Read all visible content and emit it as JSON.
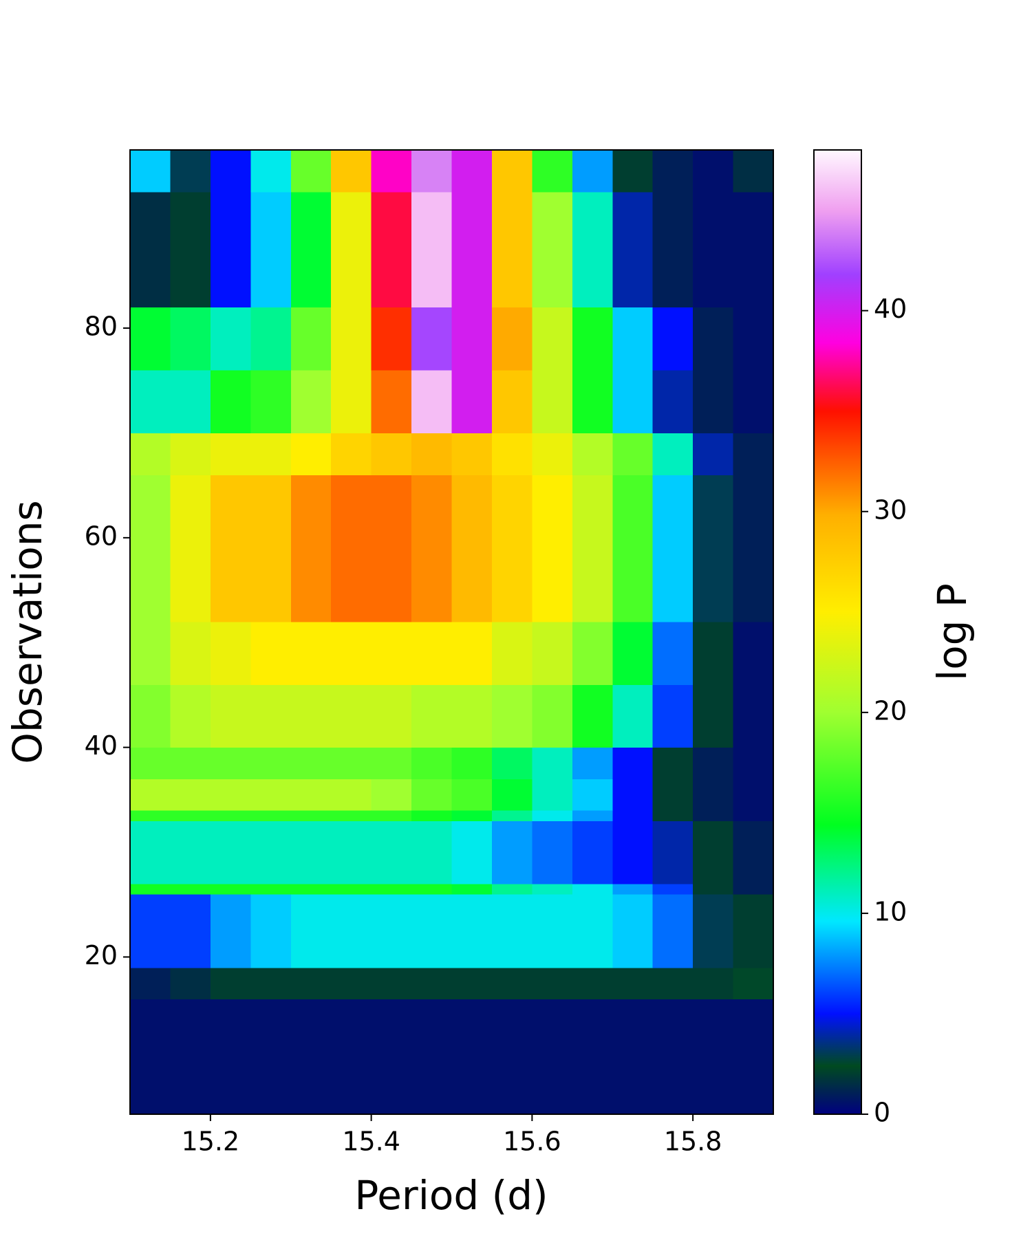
{
  "chart_data": {
    "type": "heatmap",
    "xlabel": "Period (d)",
    "ylabel": "Observations",
    "colorbar_label": "log P",
    "xlim": [
      15.1,
      15.9
    ],
    "ylim": [
      5,
      97
    ],
    "xticks": [
      15.2,
      15.4,
      15.6,
      15.8
    ],
    "yticks": [
      20,
      40,
      60,
      80
    ],
    "clim": [
      0,
      48
    ],
    "cticks": [
      0,
      10,
      20,
      30,
      40
    ],
    "colormap": [
      {
        "value": 0,
        "color": "#000080"
      },
      {
        "value": 2.4,
        "color": "#004a20"
      },
      {
        "value": 5,
        "color": "#0010ff"
      },
      {
        "value": 9.6,
        "color": "#00e8ff"
      },
      {
        "value": 14.4,
        "color": "#00ff20"
      },
      {
        "value": 20,
        "color": "#a0ff30"
      },
      {
        "value": 25,
        "color": "#ffee00"
      },
      {
        "value": 29.8,
        "color": "#ffb000"
      },
      {
        "value": 35,
        "color": "#ff1000"
      },
      {
        "value": 38.4,
        "color": "#ff00e0"
      },
      {
        "value": 41.8,
        "color": "#a040ff"
      },
      {
        "value": 45,
        "color": "#f0a0f0"
      },
      {
        "value": 48,
        "color": "#fff8ff"
      }
    ],
    "xbins": [
      15.1,
      15.15,
      15.2,
      15.25,
      15.3,
      15.35,
      15.4,
      15.45,
      15.5,
      15.55,
      15.6,
      15.65,
      15.7,
      15.75,
      15.8,
      15.85,
      15.9
    ],
    "ybins": [
      5,
      16,
      19,
      26,
      27,
      33,
      34,
      37,
      40,
      46,
      52,
      66,
      70,
      76,
      82,
      93,
      97
    ],
    "values": [
      [
        0.5,
        0.5,
        0.5,
        0.5,
        0.5,
        0.5,
        0.5,
        0.5,
        0.5,
        0.5,
        0.5,
        0.5,
        0.5,
        0.5,
        0.5,
        0.5
      ],
      [
        1,
        1.5,
        2,
        2,
        2,
        2,
        2,
        2,
        2,
        2,
        2,
        2,
        2,
        2,
        2,
        2.5
      ],
      [
        6,
        6,
        8,
        9,
        10,
        10,
        10,
        10,
        10,
        10,
        10,
        10,
        9,
        7,
        3,
        2
      ],
      [
        15,
        15,
        15,
        15,
        15,
        15,
        15,
        15,
        14,
        12,
        11,
        10,
        8,
        6,
        2,
        1
      ],
      [
        11,
        11,
        11,
        11,
        11,
        11,
        11,
        11,
        10,
        8,
        7,
        6,
        5,
        4,
        2,
        1
      ],
      [
        16,
        16,
        16,
        16,
        16,
        16,
        16,
        15,
        14,
        12,
        10,
        8,
        5,
        2,
        1,
        0.5
      ],
      [
        21,
        21,
        21,
        21,
        21,
        21,
        20,
        18,
        17,
        14,
        11,
        9,
        5,
        2,
        1,
        0.5
      ],
      [
        18,
        18,
        18,
        18,
        18,
        18,
        18,
        17,
        16,
        13,
        11,
        8,
        5,
        2,
        1,
        0.5
      ],
      [
        19,
        21,
        22,
        22,
        22,
        22,
        22,
        21,
        21,
        20,
        19,
        15,
        11,
        6,
        2,
        0.5
      ],
      [
        20,
        23,
        24,
        25,
        25,
        25,
        25,
        25,
        25,
        23,
        22,
        19,
        14,
        7,
        2,
        0.5
      ],
      [
        20,
        24,
        28,
        28,
        31,
        32,
        32,
        31,
        29,
        27,
        25,
        22,
        17,
        9,
        3,
        1
      ],
      [
        21,
        23,
        24,
        24,
        25,
        27,
        28,
        29,
        28,
        26,
        24,
        21,
        18,
        11,
        4,
        1
      ],
      [
        11,
        11,
        15,
        16,
        20,
        24,
        32,
        46,
        40,
        28,
        22,
        15,
        9,
        4,
        1,
        0.5
      ],
      [
        14,
        13,
        11,
        12,
        18,
        24,
        34,
        42,
        40,
        30,
        22,
        15,
        9,
        5,
        1,
        0.5
      ],
      [
        1.5,
        2,
        5,
        9,
        14,
        24,
        36,
        46,
        40,
        28,
        20,
        11,
        4,
        1,
        0.5,
        0.5
      ],
      [
        9,
        3,
        5,
        10,
        18,
        28,
        38,
        44,
        40,
        28,
        16,
        8,
        2,
        1,
        0.5,
        1.5
      ]
    ]
  }
}
